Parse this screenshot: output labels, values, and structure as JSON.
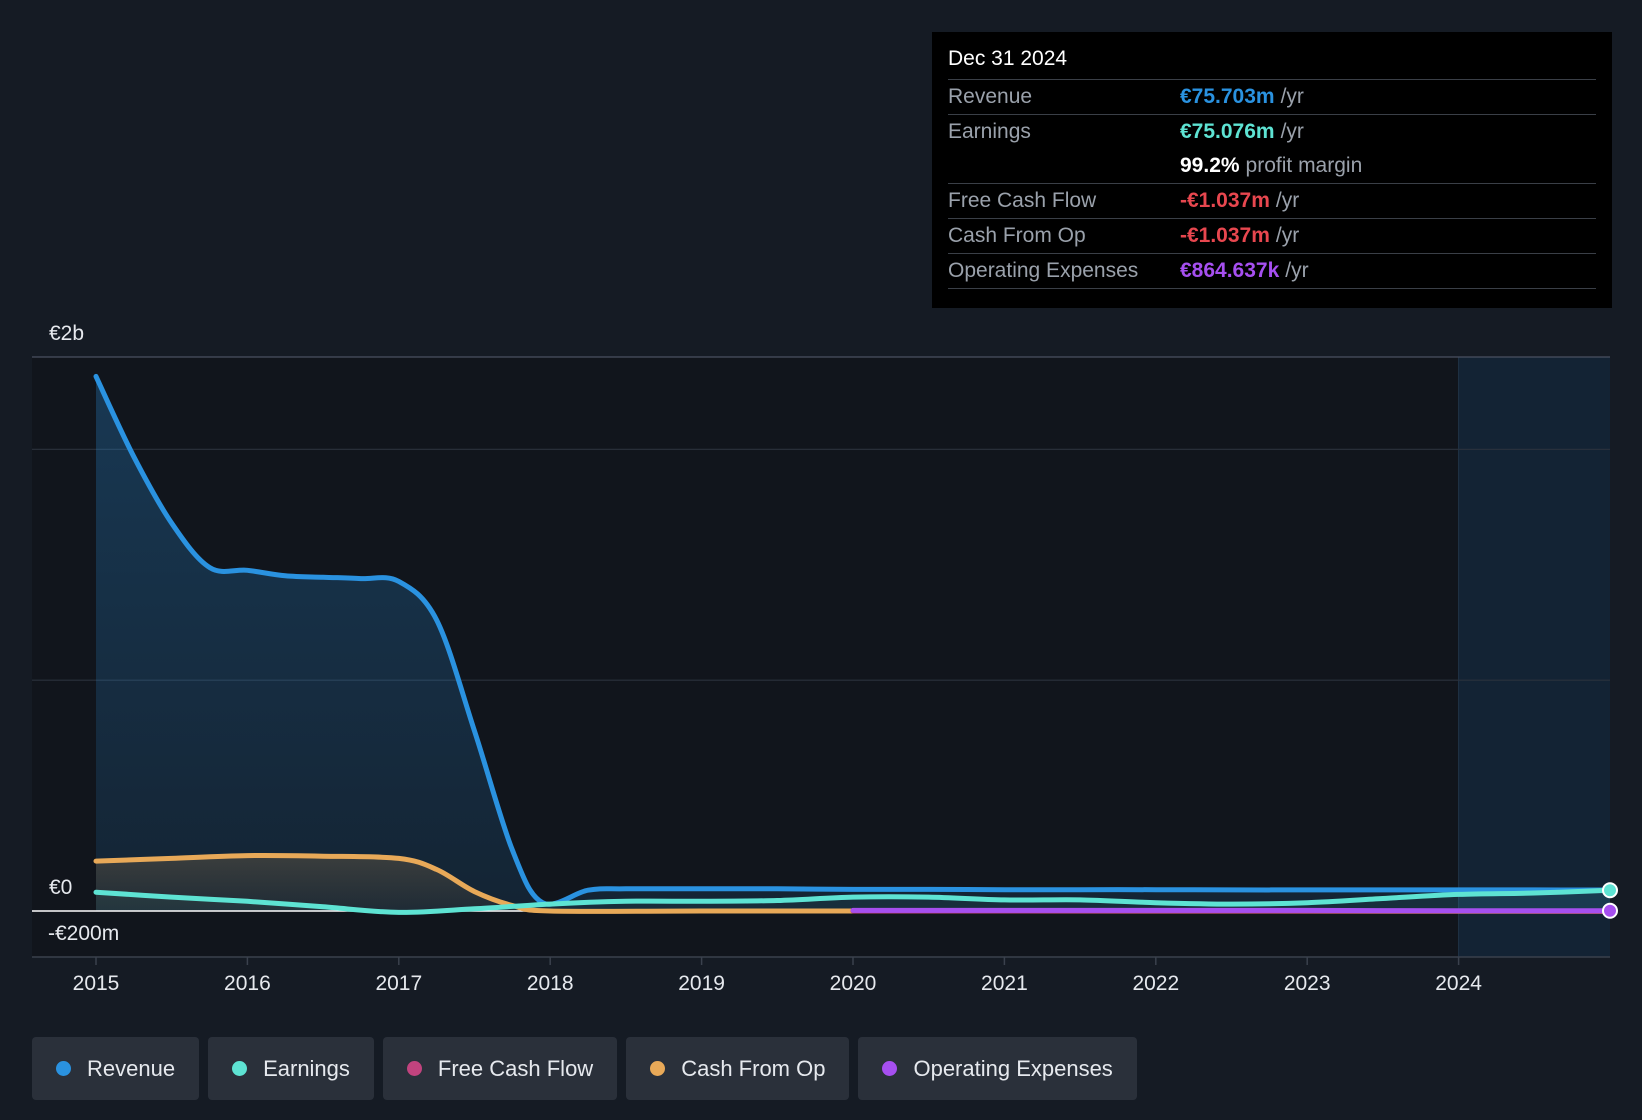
{
  "tooltip": {
    "date": "Dec 31 2024",
    "rows": [
      {
        "label": "Revenue",
        "value": "€75.703m",
        "unit": "/yr",
        "color": "#2a92e0"
      },
      {
        "label": "Earnings",
        "value": "€75.076m",
        "unit": "/yr",
        "color": "#5ee3d3"
      },
      {
        "label": "",
        "value": "99.2%",
        "unit": "profit margin",
        "color": "#ffffff"
      },
      {
        "label": "Free Cash Flow",
        "value": "-€1.037m",
        "unit": "/yr",
        "color": "#e8474f"
      },
      {
        "label": "Cash From Op",
        "value": "-€1.037m",
        "unit": "/yr",
        "color": "#e8474f"
      },
      {
        "label": "Operating Expenses",
        "value": "€864.637k",
        "unit": "/yr",
        "color": "#a64ff0"
      }
    ]
  },
  "legend": [
    {
      "label": "Revenue",
      "color": "#2a92e0"
    },
    {
      "label": "Earnings",
      "color": "#5ee3d3"
    },
    {
      "label": "Free Cash Flow",
      "color": "#c1437e"
    },
    {
      "label": "Cash From Op",
      "color": "#e8a958"
    },
    {
      "label": "Operating Expenses",
      "color": "#a64ff0"
    }
  ],
  "chart_data": {
    "type": "area",
    "x_ticks": [
      "2015",
      "2016",
      "2017",
      "2018",
      "2019",
      "2020",
      "2021",
      "2022",
      "2023",
      "2024"
    ],
    "y_labels": [
      "€2b",
      "€0",
      "-€200m"
    ],
    "ylim": [
      -200,
      2000
    ],
    "grid": true,
    "series": [
      {
        "name": "Revenue",
        "color": "#2a92e0",
        "points": [
          [
            2015.0,
            1930
          ],
          [
            2015.25,
            1640
          ],
          [
            2015.5,
            1400
          ],
          [
            2015.75,
            1240
          ],
          [
            2016.0,
            1230
          ],
          [
            2016.25,
            1210
          ],
          [
            2016.5,
            1205
          ],
          [
            2016.75,
            1200
          ],
          [
            2017.0,
            1190
          ],
          [
            2017.25,
            1050
          ],
          [
            2017.5,
            650
          ],
          [
            2017.75,
            220
          ],
          [
            2017.95,
            30
          ],
          [
            2018.25,
            75
          ],
          [
            2018.5,
            80
          ],
          [
            2019.0,
            80
          ],
          [
            2019.5,
            80
          ],
          [
            2020.0,
            78
          ],
          [
            2020.5,
            78
          ],
          [
            2021.0,
            77
          ],
          [
            2021.5,
            77
          ],
          [
            2022.0,
            77
          ],
          [
            2022.5,
            76
          ],
          [
            2023.0,
            76
          ],
          [
            2023.5,
            76
          ],
          [
            2024.0,
            76
          ],
          [
            2024.5,
            76
          ],
          [
            2025.0,
            75.7
          ]
        ]
      },
      {
        "name": "Earnings",
        "color": "#5ee3d3",
        "points": [
          [
            2015.0,
            68
          ],
          [
            2015.5,
            50
          ],
          [
            2016.0,
            35
          ],
          [
            2016.5,
            15
          ],
          [
            2017.0,
            -5
          ],
          [
            2017.5,
            8
          ],
          [
            2018.0,
            25
          ],
          [
            2018.5,
            35
          ],
          [
            2019.0,
            35
          ],
          [
            2019.5,
            38
          ],
          [
            2020.0,
            50
          ],
          [
            2020.5,
            50
          ],
          [
            2021.0,
            40
          ],
          [
            2021.5,
            40
          ],
          [
            2022.0,
            30
          ],
          [
            2022.5,
            25
          ],
          [
            2023.0,
            30
          ],
          [
            2023.5,
            45
          ],
          [
            2024.0,
            60
          ],
          [
            2024.5,
            65
          ],
          [
            2025.0,
            75
          ]
        ]
      },
      {
        "name": "Free Cash Flow",
        "color": "#c1437e",
        "points": [
          [
            2020.0,
            0
          ],
          [
            2021.0,
            0
          ],
          [
            2022.0,
            0
          ],
          [
            2023.0,
            0
          ],
          [
            2024.0,
            0
          ],
          [
            2025.0,
            -1
          ]
        ]
      },
      {
        "name": "Cash From Op",
        "color": "#e8a958",
        "points": [
          [
            2015.0,
            180
          ],
          [
            2015.5,
            190
          ],
          [
            2016.0,
            200
          ],
          [
            2016.5,
            198
          ],
          [
            2017.0,
            190
          ],
          [
            2017.25,
            150
          ],
          [
            2017.5,
            70
          ],
          [
            2017.75,
            20
          ],
          [
            2018.0,
            0
          ],
          [
            2019.0,
            0
          ],
          [
            2020.0,
            0
          ],
          [
            2025.0,
            -1
          ]
        ]
      },
      {
        "name": "Operating Expenses",
        "color": "#a64ff0",
        "points": [
          [
            2020.0,
            2
          ],
          [
            2021.0,
            2
          ],
          [
            2022.0,
            2
          ],
          [
            2023.0,
            2
          ],
          [
            2024.0,
            1
          ],
          [
            2025.0,
            0.9
          ]
        ]
      }
    ]
  }
}
